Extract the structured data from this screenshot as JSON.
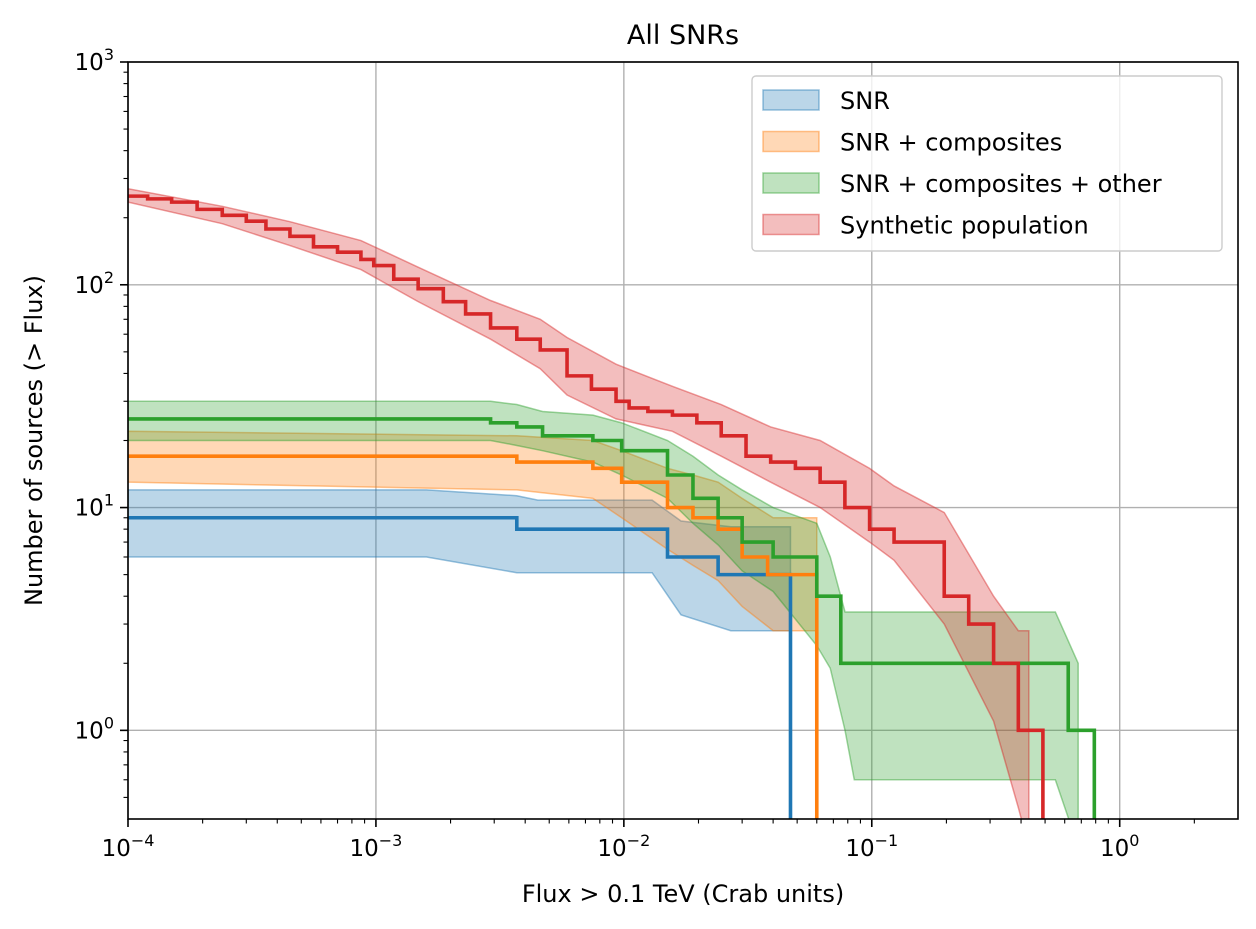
{
  "chart_data": {
    "type": "line",
    "title": "All SNRs",
    "xlabel": "Flux > 0.1 TeV (Crab units)",
    "ylabel": "Number of sources (> Flux)",
    "x_scale": "log",
    "y_scale": "log",
    "xlim": [
      0.0001,
      3
    ],
    "ylim": [
      0.4,
      1000
    ],
    "grid": true,
    "legend_position": "top-right",
    "x_ticks": [
      {
        "value": 0.0001,
        "base": "10",
        "exp": "−4"
      },
      {
        "value": 0.001,
        "base": "10",
        "exp": "−3"
      },
      {
        "value": 0.01,
        "base": "10",
        "exp": "−2"
      },
      {
        "value": 0.1,
        "base": "10",
        "exp": "−1"
      },
      {
        "value": 1,
        "base": "10",
        "exp": "0"
      }
    ],
    "y_ticks": [
      {
        "value": 1,
        "base": "10",
        "exp": "0"
      },
      {
        "value": 10,
        "base": "10",
        "exp": "1"
      },
      {
        "value": 100,
        "base": "10",
        "exp": "2"
      },
      {
        "value": 1000,
        "base": "10",
        "exp": "3"
      }
    ],
    "series": [
      {
        "name": "SNR",
        "color": "#1f77b4",
        "band_alpha": 0.3,
        "x": [
          0.0001,
          0.0037,
          0.015,
          0.024,
          0.038
        ],
        "y": [
          9,
          8,
          6,
          5,
          5
        ],
        "x_end": 0.047,
        "band": {
          "x": [
            0.0001,
            0.0016,
            0.0037,
            0.0045,
            0.013,
            0.017,
            0.027,
            0.047
          ],
          "lower": [
            6,
            6,
            5.1,
            5.1,
            5.1,
            3.3,
            2.8,
            2.8
          ],
          "upper": [
            12,
            12,
            11.3,
            10.8,
            10.8,
            8.7,
            8.2,
            8.2
          ]
        }
      },
      {
        "name": "SNR + composites",
        "color": "#ff7f0e",
        "band_alpha": 0.3,
        "x": [
          0.0001,
          0.0037,
          0.0075,
          0.0098,
          0.015,
          0.019,
          0.024,
          0.03,
          0.038
        ],
        "y": [
          17,
          16,
          15,
          13,
          10,
          9,
          8,
          6,
          5
        ],
        "x_end": 0.06,
        "band": {
          "x": [
            0.0001,
            0.0037,
            0.0075,
            0.0098,
            0.015,
            0.019,
            0.024,
            0.03,
            0.04,
            0.06
          ],
          "lower": [
            13,
            12,
            11,
            9,
            6.5,
            5.5,
            4.7,
            3.6,
            2.8,
            2.8
          ],
          "upper": [
            22,
            21,
            20,
            18,
            15,
            14,
            13,
            11,
            9,
            9
          ]
        }
      },
      {
        "name": "SNR + composites + other",
        "color": "#2ca02c",
        "band_alpha": 0.3,
        "x": [
          0.0001,
          0.0029,
          0.0037,
          0.0047,
          0.0075,
          0.0098,
          0.015,
          0.019,
          0.024,
          0.03,
          0.04,
          0.06,
          0.075,
          0.62
        ],
        "y": [
          25,
          24,
          23,
          21,
          20,
          18,
          14,
          11,
          9,
          7,
          6,
          4,
          2,
          1
        ],
        "x_end": 0.79,
        "band": {
          "x": [
            0.0001,
            0.0029,
            0.0037,
            0.0047,
            0.0075,
            0.0098,
            0.015,
            0.019,
            0.024,
            0.03,
            0.04,
            0.06,
            0.068,
            0.078,
            0.085,
            0.55,
            0.68
          ],
          "lower": [
            20,
            20,
            19,
            18,
            16,
            14,
            11,
            8.5,
            6.8,
            5.2,
            4.2,
            2.4,
            1.9,
            1.0,
            0.6,
            0.6,
            0.3
          ],
          "upper": [
            30,
            30,
            29,
            27,
            26,
            24,
            20,
            17,
            14,
            12,
            10,
            8.5,
            6.0,
            3.4,
            3.4,
            3.4,
            2.0
          ]
        }
      },
      {
        "name": "Synthetic population",
        "color": "#d62728",
        "band_alpha": 0.3,
        "x": [
          0.0001,
          0.00012,
          0.00015,
          0.00019,
          0.00024,
          0.0003,
          0.00036,
          0.00045,
          0.00056,
          0.0007,
          0.00087,
          0.00098,
          0.00118,
          0.00148,
          0.00187,
          0.0023,
          0.0029,
          0.0037,
          0.0046,
          0.0059,
          0.0074,
          0.0093,
          0.0105,
          0.0125,
          0.0157,
          0.0197,
          0.0247,
          0.0311,
          0.0391,
          0.0492,
          0.0619,
          0.0779,
          0.098,
          0.123,
          0.196,
          0.246,
          0.31,
          0.39,
          0.49
        ],
        "y": [
          250,
          243,
          235,
          218,
          205,
          193,
          178,
          165,
          148,
          140,
          130,
          122,
          106,
          96,
          84,
          74,
          64,
          57,
          51,
          39,
          34,
          30,
          28,
          27,
          26,
          24,
          21,
          17,
          16,
          15,
          13,
          10,
          8,
          7,
          4,
          3,
          2,
          1,
          0.3
        ],
        "x_end": 0.49,
        "band": {
          "x": [
            0.0001,
            0.00024,
            0.00045,
            0.00087,
            0.00148,
            0.0029,
            0.0046,
            0.0059,
            0.0093,
            0.0157,
            0.0247,
            0.0391,
            0.0619,
            0.098,
            0.123,
            0.196,
            0.31,
            0.39,
            0.43
          ],
          "lower": [
            235,
            188,
            150,
            117,
            84,
            57,
            42,
            32,
            25,
            22,
            17,
            13,
            10,
            7,
            5.8,
            3.0,
            1.1,
            0.45,
            0.3
          ],
          "upper": [
            270,
            225,
            192,
            158,
            120,
            85,
            70,
            58,
            44,
            35,
            29,
            23,
            20,
            15,
            12.5,
            9.5,
            4.0,
            2.8,
            2.8
          ]
        }
      }
    ]
  }
}
